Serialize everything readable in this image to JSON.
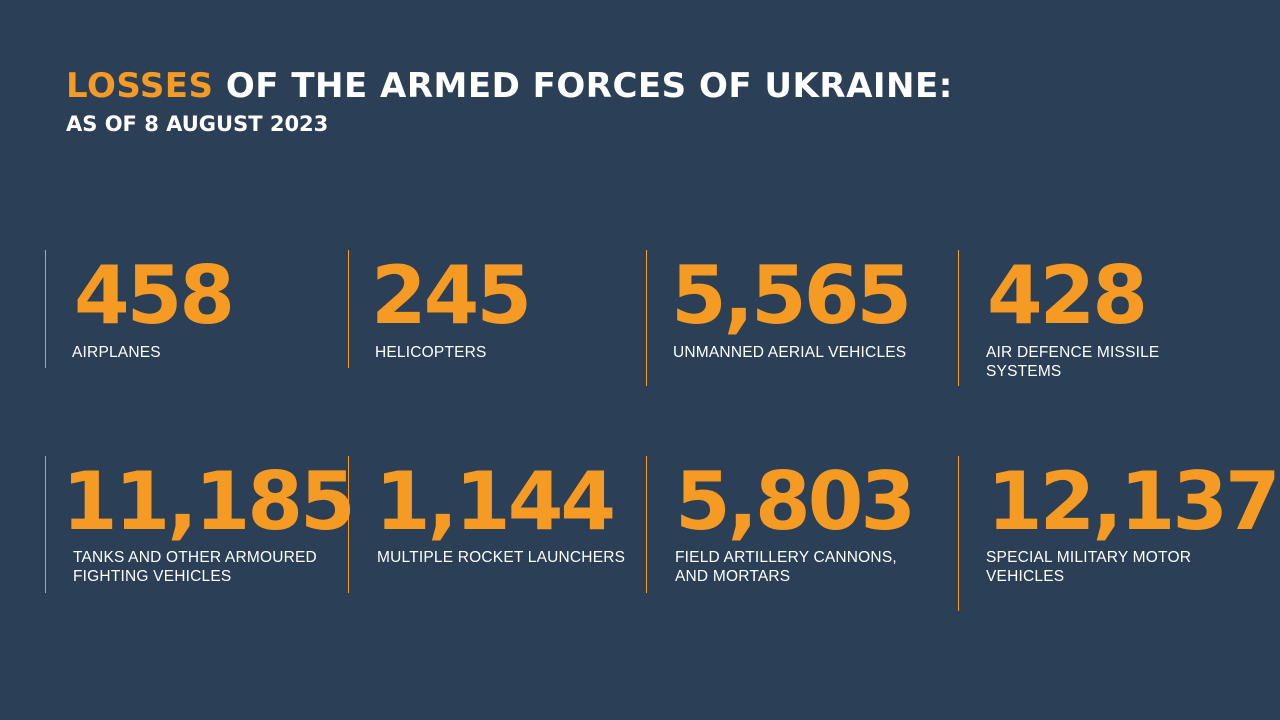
{
  "header": {
    "title_accent": "LOSSES",
    "title_rest": " OF THE ARMED FORCES OF UKRAINE:",
    "subtitle": "AS OF 8 AUGUST 2023"
  },
  "colors": {
    "background": "#2b3f56",
    "accent": "#f59a23",
    "text": "#ffffff"
  },
  "stats": [
    {
      "value": "458",
      "label": "AIRPLANES"
    },
    {
      "value": "245",
      "label": "HELICOPTERS"
    },
    {
      "value": "5,565",
      "label": "UNMANNED AERIAL VEHICLES"
    },
    {
      "value": "428",
      "label": "AIR DEFENCE MISSILE SYSTEMS"
    },
    {
      "value": "11,185",
      "label": "TANKS AND OTHER ARMOURED FIGHTING VEHICLES"
    },
    {
      "value": "1,144",
      "label": "MULTIPLE ROCKET LAUNCHERS"
    },
    {
      "value": "5,803",
      "label": "FIELD ARTILLERY CANNONS, AND MORTARS"
    },
    {
      "value": "12,137",
      "label": "SPECIAL MILITARY MOTOR VEHICLES"
    }
  ]
}
